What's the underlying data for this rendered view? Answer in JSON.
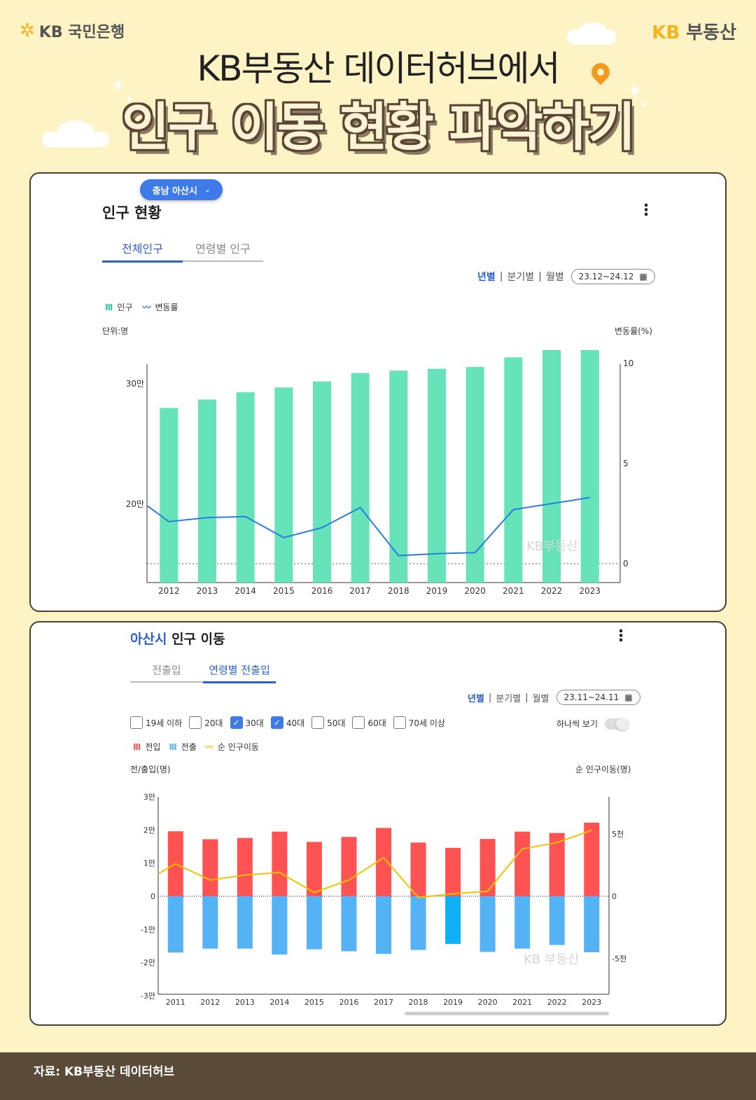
{
  "header": {
    "bank_logo": "KB 국민은행",
    "brand_logo_kb": "KB",
    "brand_logo_name": "부동산",
    "title_line1": "KB부동산 데이터허브에서",
    "title_line2": "인구 이동 현황 파악하기"
  },
  "card1": {
    "region_pill": "충남 아산시",
    "title": "인구 현황",
    "tabs": [
      "전체인구",
      "연령별 인구"
    ],
    "period_options": [
      "년별",
      "분기별",
      "월별"
    ],
    "date_range": "23.12~24.12",
    "legend": [
      "인구",
      "변동률"
    ],
    "left_unit": "단위:명",
    "right_unit": "변동률(%)",
    "watermark": "KB부동산"
  },
  "card2": {
    "title_region": "아산시",
    "title_rest": "인구 이동",
    "tabs": [
      "전출입",
      "연령별 전출입"
    ],
    "period_options": [
      "년별",
      "분기별",
      "월별"
    ],
    "date_range": "23.11~24.11",
    "age_filters": [
      {
        "label": "19세 이하",
        "checked": false
      },
      {
        "label": "20대",
        "checked": false
      },
      {
        "label": "30대",
        "checked": true
      },
      {
        "label": "40대",
        "checked": true
      },
      {
        "label": "50대",
        "checked": false
      },
      {
        "label": "60대",
        "checked": false
      },
      {
        "label": "70세 이상",
        "checked": false
      }
    ],
    "toggle_label": "하나씩 보기",
    "legend": [
      "전입",
      "전출",
      "순 인구이동"
    ],
    "left_unit": "전/출입(명)",
    "right_unit": "순 인구이동(명)",
    "watermark": "KB 부동산"
  },
  "footer": {
    "source": "자료: KB부동산 데이터허브"
  },
  "colors": {
    "population_bar": "#66e3b9",
    "change_line": "#2b7de0",
    "inflow": "#ff5252",
    "outflow": "#55b2f5",
    "net_line": "#f2c200",
    "accent": "#2b5fc9"
  },
  "chart_data": [
    {
      "type": "bar",
      "categories": [
        "2012",
        "2013",
        "2014",
        "2015",
        "2016",
        "2017",
        "2018",
        "2019",
        "2020",
        "2021",
        "2022",
        "2023"
      ],
      "y_ticks": [
        "20만",
        "30만"
      ],
      "y2_ticks": [
        "0",
        "5",
        "10"
      ],
      "y2lim": [
        0,
        10
      ],
      "series": [
        {
          "name": "인구",
          "type": "bar",
          "axis": "left",
          "values": [
            280000,
            287000,
            293000,
            297000,
            302000,
            309000,
            311000,
            312500,
            314000,
            322000,
            332000,
            343000
          ]
        },
        {
          "name": "변동률",
          "type": "line",
          "axis": "right",
          "values": [
            2.1,
            2.3,
            2.35,
            1.3,
            1.8,
            2.8,
            0.4,
            0.5,
            0.55,
            2.7,
            3.0,
            3.3
          ]
        }
      ],
      "line_start_value": 2.9
    },
    {
      "type": "bar",
      "categories": [
        "2011",
        "2012",
        "2013",
        "2014",
        "2015",
        "2016",
        "2017",
        "2018",
        "2019",
        "2020",
        "2021",
        "2022",
        "2023"
      ],
      "y_ticks": [
        "3만",
        "2만",
        "1만",
        "0",
        "-1만",
        "-2만",
        "-3만"
      ],
      "ylim": [
        -30000,
        30000
      ],
      "y2_ticks": [
        "5천",
        "0",
        "-5천"
      ],
      "y2lim": [
        -8500,
        8500
      ],
      "series": [
        {
          "name": "전입",
          "type": "bar",
          "axis": "left",
          "values": [
            19600,
            17200,
            17600,
            19500,
            16400,
            17900,
            20600,
            16200,
            14600,
            17300,
            19500,
            19100,
            22200
          ]
        },
        {
          "name": "전출",
          "type": "bar",
          "axis": "left",
          "values": [
            -17000,
            -15800,
            -15800,
            -17600,
            -16000,
            -16600,
            -17400,
            -16200,
            -14400,
            -16800,
            -15800,
            -14700,
            -16900
          ]
        },
        {
          "name": "순 인구이동",
          "type": "line",
          "axis": "right",
          "values": [
            2600,
            1300,
            1700,
            1900,
            300,
            1300,
            3100,
            -100,
            200,
            400,
            3800,
            4300,
            5300
          ]
        }
      ],
      "line_start_value": 1800
    }
  ]
}
